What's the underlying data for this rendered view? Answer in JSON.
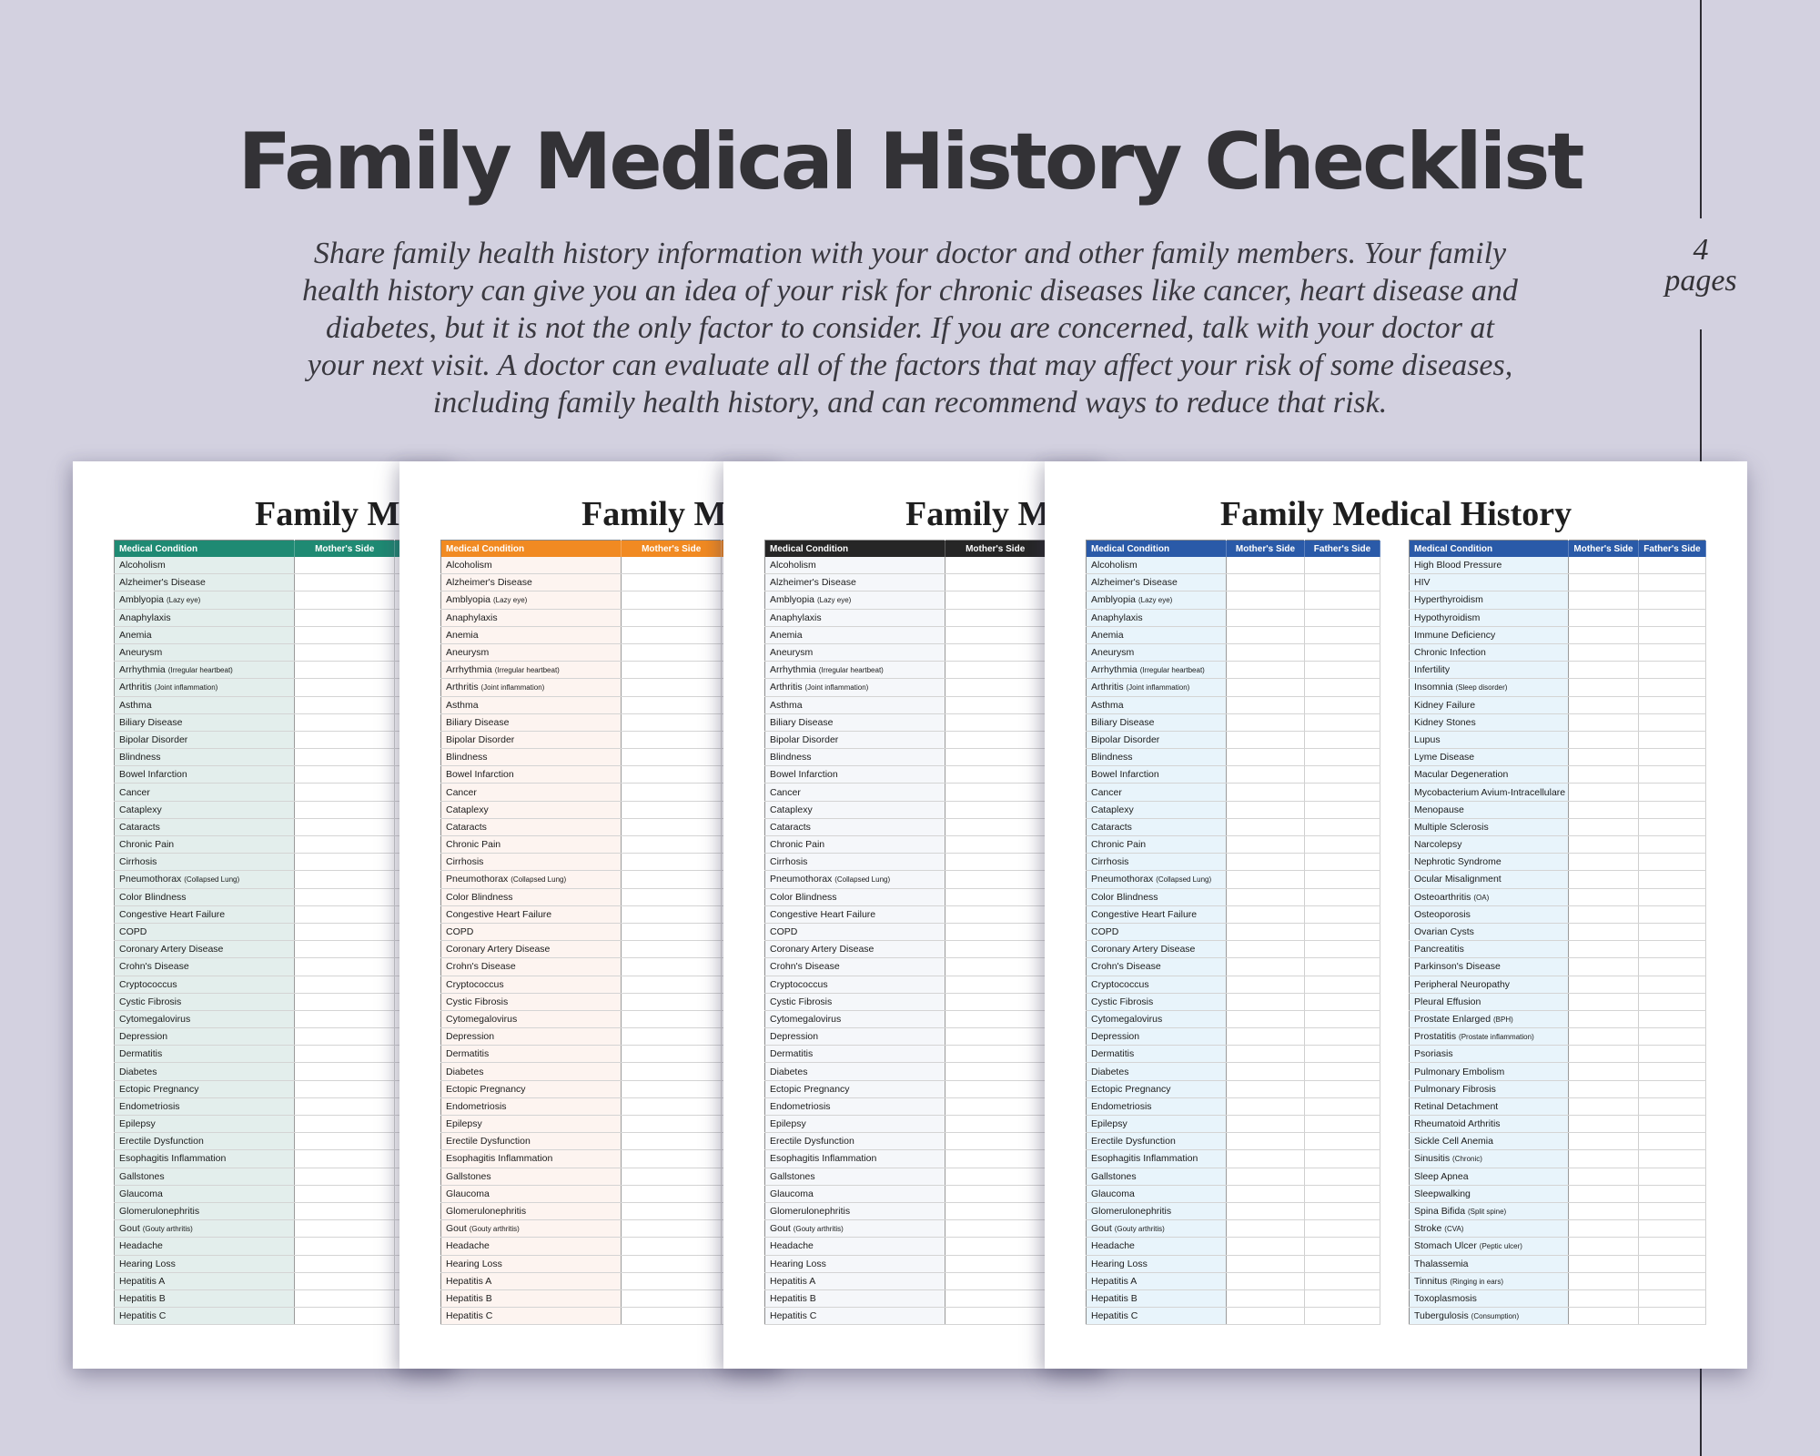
{
  "header": {
    "title": "Family Medical History Checklist",
    "description": "Share family health history information with your doctor and other family members. Your family health history can give you an idea of your risk for chronic diseases like cancer, heart disease and diabetes, but it is not the only factor to consider. If you are concerned, talk with your doctor at your next visit. A doctor can evaluate all of the factors that may affect your risk of some diseases, including family health history, and can recommend ways to reduce that risk."
  },
  "badge": {
    "count": "4",
    "label": "pages"
  },
  "sheet": {
    "title": "Family Medical History",
    "columns": [
      "Medical Condition",
      "Mother's Side",
      "Father's Side"
    ]
  },
  "themes": {
    "teal": "#1f8a73",
    "orange": "#f18a22",
    "black": "#262626",
    "blue": "#2a5aa8"
  },
  "conditions_a": [
    {
      "name": "Alcoholism",
      "note": ""
    },
    {
      "name": "Alzheimer's Disease",
      "note": ""
    },
    {
      "name": "Amblyopia",
      "note": "(Lazy eye)"
    },
    {
      "name": "Anaphylaxis",
      "note": ""
    },
    {
      "name": "Anemia",
      "note": ""
    },
    {
      "name": "Aneurysm",
      "note": ""
    },
    {
      "name": "Arrhythmia",
      "note": "(Irregular heartbeat)"
    },
    {
      "name": "Arthritis",
      "note": "(Joint inflammation)"
    },
    {
      "name": "Asthma",
      "note": ""
    },
    {
      "name": "Biliary Disease",
      "note": ""
    },
    {
      "name": "Bipolar Disorder",
      "note": ""
    },
    {
      "name": "Blindness",
      "note": ""
    },
    {
      "name": "Bowel Infarction",
      "note": ""
    },
    {
      "name": "Cancer",
      "note": ""
    },
    {
      "name": "Cataplexy",
      "note": ""
    },
    {
      "name": "Cataracts",
      "note": ""
    },
    {
      "name": "Chronic Pain",
      "note": ""
    },
    {
      "name": "Cirrhosis",
      "note": ""
    },
    {
      "name": "Pneumothorax",
      "note": "(Collapsed Lung)"
    },
    {
      "name": "Color Blindness",
      "note": ""
    },
    {
      "name": "Congestive Heart Failure",
      "note": ""
    },
    {
      "name": "COPD",
      "note": ""
    },
    {
      "name": "Coronary Artery Disease",
      "note": ""
    },
    {
      "name": "Crohn's Disease",
      "note": ""
    },
    {
      "name": "Cryptococcus",
      "note": ""
    },
    {
      "name": "Cystic Fibrosis",
      "note": ""
    },
    {
      "name": "Cytomegalovirus",
      "note": ""
    },
    {
      "name": "Depression",
      "note": ""
    },
    {
      "name": "Dermatitis",
      "note": ""
    },
    {
      "name": "Diabetes",
      "note": ""
    },
    {
      "name": "Ectopic Pregnancy",
      "note": ""
    },
    {
      "name": "Endometriosis",
      "note": ""
    },
    {
      "name": "Epilepsy",
      "note": ""
    },
    {
      "name": "Erectile Dysfunction",
      "note": ""
    },
    {
      "name": "Esophagitis Inflammation",
      "note": ""
    },
    {
      "name": "Gallstones",
      "note": ""
    },
    {
      "name": "Glaucoma",
      "note": ""
    },
    {
      "name": "Glomerulonephritis",
      "note": ""
    },
    {
      "name": "Gout",
      "note": "(Gouty arthritis)"
    },
    {
      "name": "Headache",
      "note": ""
    },
    {
      "name": "Hearing Loss",
      "note": ""
    },
    {
      "name": "Hepatitis A",
      "note": ""
    },
    {
      "name": "Hepatitis B",
      "note": ""
    },
    {
      "name": "Hepatitis C",
      "note": ""
    }
  ],
  "conditions_b": [
    {
      "name": "High Blood Pressure",
      "note": ""
    },
    {
      "name": "HIV",
      "note": ""
    },
    {
      "name": "Hyperthyroidism",
      "note": ""
    },
    {
      "name": "Hypothyroidism",
      "note": ""
    },
    {
      "name": "Immune Deficiency",
      "note": ""
    },
    {
      "name": "Chronic Infection",
      "note": ""
    },
    {
      "name": "Infertility",
      "note": ""
    },
    {
      "name": "Insomnia",
      "note": "(Sleep disorder)"
    },
    {
      "name": "Kidney Failure",
      "note": ""
    },
    {
      "name": "Kidney Stones",
      "note": ""
    },
    {
      "name": "Lupus",
      "note": ""
    },
    {
      "name": "Lyme Disease",
      "note": ""
    },
    {
      "name": "Macular Degeneration",
      "note": ""
    },
    {
      "name": "Mycobacterium Avium-Intracellulare",
      "note": ""
    },
    {
      "name": "Menopause",
      "note": ""
    },
    {
      "name": "Multiple Sclerosis",
      "note": ""
    },
    {
      "name": "Narcolepsy",
      "note": ""
    },
    {
      "name": "Nephrotic Syndrome",
      "note": ""
    },
    {
      "name": "Ocular Misalignment",
      "note": ""
    },
    {
      "name": "Osteoarthritis",
      "note": "(OA)"
    },
    {
      "name": "Osteoporosis",
      "note": ""
    },
    {
      "name": "Ovarian Cysts",
      "note": ""
    },
    {
      "name": "Pancreatitis",
      "note": ""
    },
    {
      "name": "Parkinson's Disease",
      "note": ""
    },
    {
      "name": "Peripheral Neuropathy",
      "note": ""
    },
    {
      "name": "Pleural Effusion",
      "note": ""
    },
    {
      "name": "Prostate Enlarged",
      "note": "(BPH)"
    },
    {
      "name": "Prostatitis",
      "note": "(Prostate inflammation)"
    },
    {
      "name": "Psoriasis",
      "note": ""
    },
    {
      "name": "Pulmonary Embolism",
      "note": ""
    },
    {
      "name": "Pulmonary Fibrosis",
      "note": ""
    },
    {
      "name": "Retinal Detachment",
      "note": ""
    },
    {
      "name": "Rheumatoid Arthritis",
      "note": ""
    },
    {
      "name": "Sickle Cell Anemia",
      "note": ""
    },
    {
      "name": "Sinusitis",
      "note": "(Chronic)"
    },
    {
      "name": "Sleep Apnea",
      "note": ""
    },
    {
      "name": "Sleepwalking",
      "note": ""
    },
    {
      "name": "Spina Bifida",
      "note": "(Split spine)"
    },
    {
      "name": "Stroke",
      "note": "(CVA)"
    },
    {
      "name": "Stomach Ulcer",
      "note": "(Peptic ulcer)"
    },
    {
      "name": "Thalassemia",
      "note": ""
    },
    {
      "name": "Tinnitus",
      "note": "(Ringing in ears)"
    },
    {
      "name": "Toxoplasmosis",
      "note": ""
    },
    {
      "name": "Tubergulosis",
      "note": "(Consumption)"
    }
  ]
}
